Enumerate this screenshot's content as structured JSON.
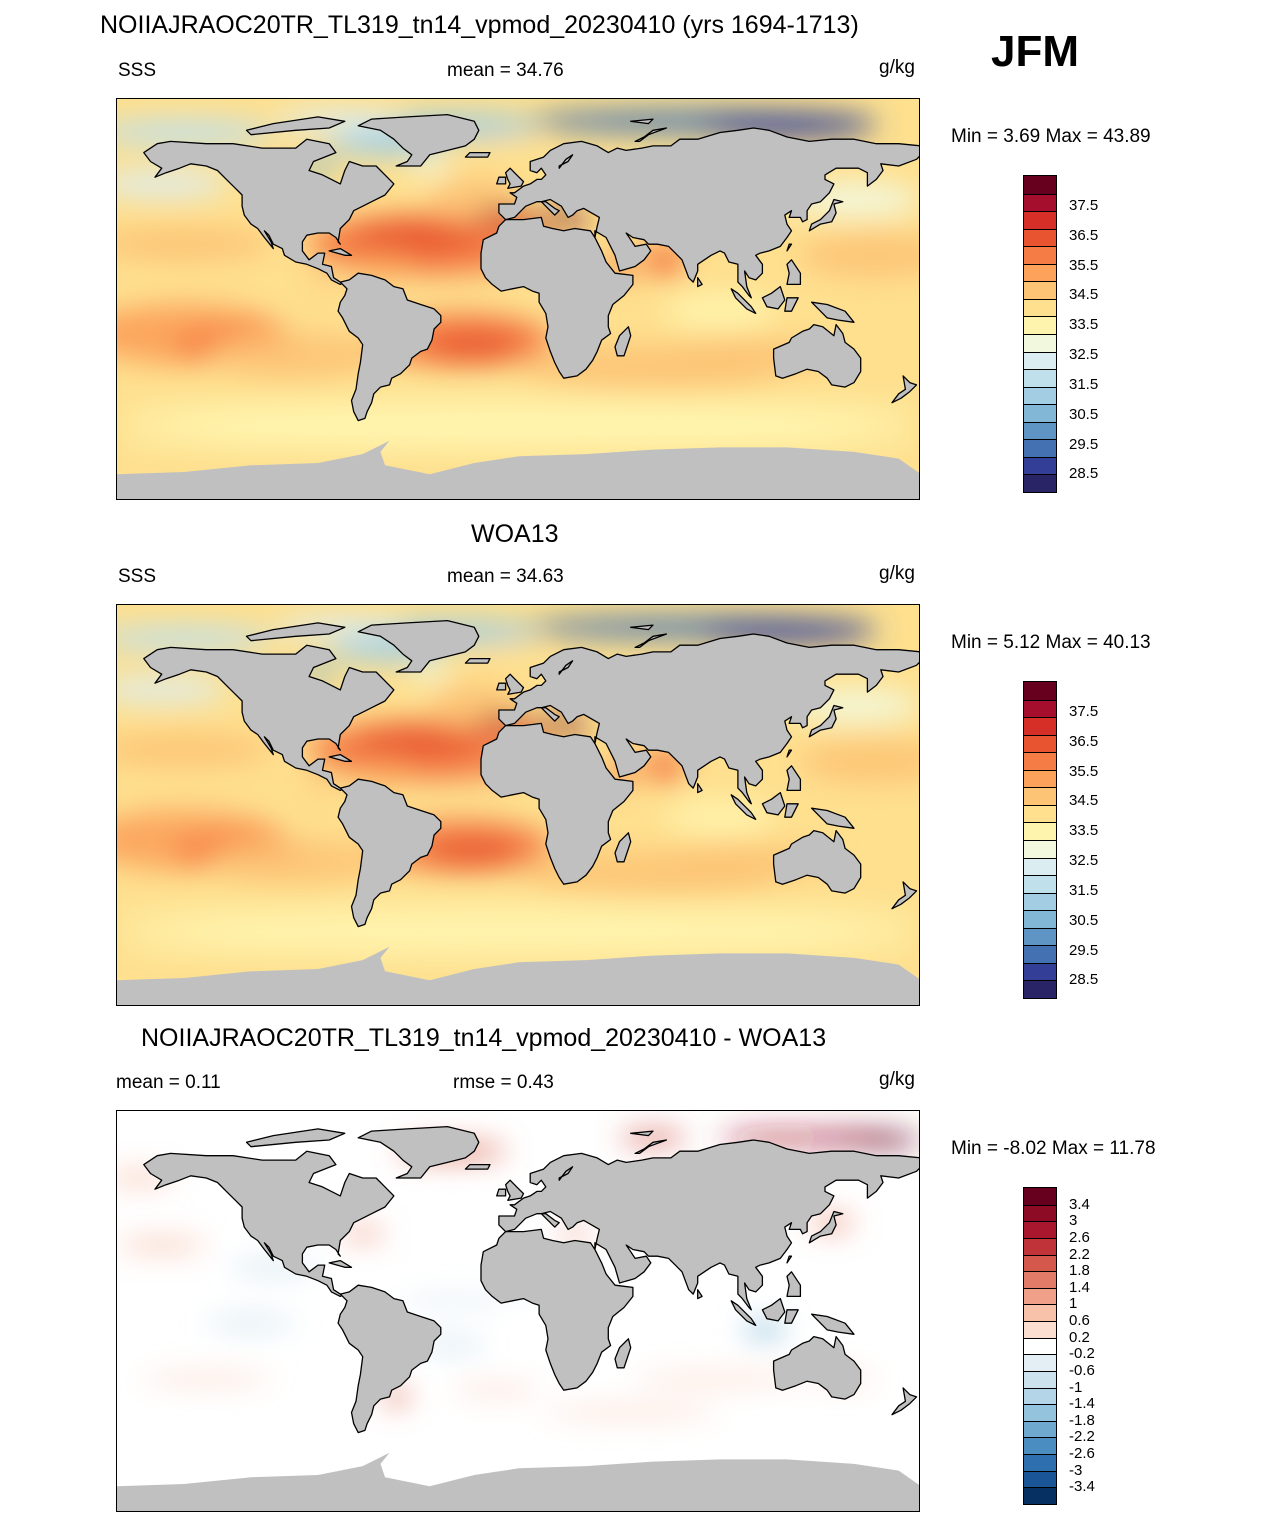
{
  "season": "JFM",
  "colors": {
    "land": "#c0c0c0",
    "border": "#000000"
  },
  "panels": [
    {
      "title": "NOIIAJRAOC20TR_TL319_tn14_vpmod_20230410 (yrs 1694-1713)",
      "left_label": "SSS",
      "center_label": "mean =  34.76",
      "units": "g/kg",
      "minmax": "Min =   3.69 Max =  43.89"
    },
    {
      "title": "WOA13",
      "left_label": "SSS",
      "center_label": "mean =  34.63",
      "units": "g/kg",
      "minmax": "Min =   5.12 Max =  40.13"
    },
    {
      "title": "NOIIAJRAOC20TR_TL319_tn14_vpmod_20230410 - WOA13",
      "left_label": "mean =   0.11",
      "center_label": "rmse =   0.43",
      "units": "g/kg",
      "minmax": "Min =  -8.02 Max =  11.78"
    }
  ],
  "colorbar_sss": {
    "labels": [
      "37.5",
      "36.5",
      "35.5",
      "34.5",
      "33.5",
      "32.5",
      "31.5",
      "30.5",
      "29.5",
      "28.5"
    ],
    "colors": [
      "#67001f",
      "#a50f2d",
      "#d62f27",
      "#e8542f",
      "#f57d45",
      "#fca25b",
      "#fdc476",
      "#fee08f",
      "#fff4ae",
      "#f2f8de",
      "#dcedf2",
      "#c0e0ec",
      "#a2cde2",
      "#83b7d6",
      "#5f95c4",
      "#4371b2",
      "#333f96",
      "#292466"
    ]
  },
  "colorbar_diff": {
    "labels": [
      "3.4",
      "3",
      "2.6",
      "2.2",
      "1.8",
      "1.4",
      "1",
      "0.6",
      "0.2",
      "-0.2",
      "-0.6",
      "-1",
      "-1.4",
      "-1.8",
      "-2.2",
      "-2.6",
      "-3",
      "-3.4"
    ],
    "colors": [
      "#67001f",
      "#8e0b26",
      "#a8172e",
      "#bf3339",
      "#d4584c",
      "#e27c68",
      "#f09f89",
      "#f7c1aa",
      "#fbded0",
      "#ffffff",
      "#e3eff5",
      "#cce3ee",
      "#b4d5e7",
      "#94c3dd",
      "#6fa9d0",
      "#4a8dc1",
      "#2d6faf",
      "#195597",
      "#053061"
    ]
  }
}
